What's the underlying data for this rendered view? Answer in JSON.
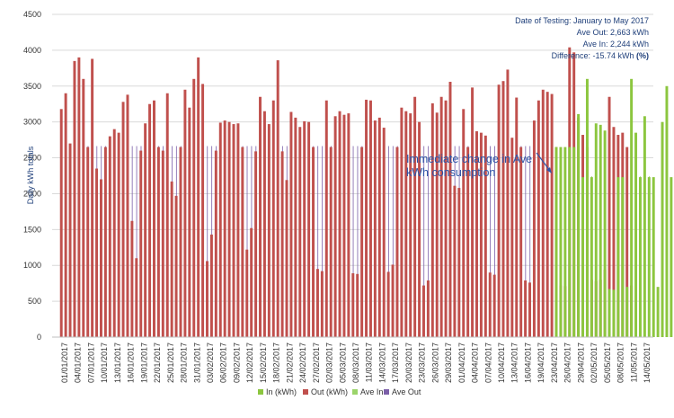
{
  "chart_data": {
    "type": "bar",
    "xlabel": "",
    "ylabel": "Daily kWh totals",
    "ylim": [
      0,
      4500
    ],
    "yticks": [
      0,
      500,
      1000,
      1500,
      2000,
      2500,
      3000,
      3500,
      4000,
      4500
    ],
    "grid": "horizontal",
    "legend_position": "bottom",
    "colors": {
      "in": "#8cc63f",
      "out": "#c0504d",
      "ave_in": "#9bd46a",
      "ave_out": "#7b5fa8",
      "grid": "#d9d9d9",
      "annotation": "#2e55a8",
      "info": "#1f3f7a"
    },
    "x_tick_labels": [
      "01/01/2017",
      "04/01/2017",
      "07/01/2017",
      "10/01/2017",
      "13/01/2017",
      "16/01/2017",
      "19/01/2017",
      "22/01/2017",
      "25/01/2017",
      "28/01/2017",
      "31/01/2017",
      "03/02/2017",
      "06/02/2017",
      "09/02/2017",
      "12/02/2017",
      "15/02/2017",
      "18/02/2017",
      "21/02/2017",
      "24/02/2017",
      "27/02/2017",
      "02/03/2017",
      "05/03/2017",
      "08/03/2017",
      "11/03/2017",
      "14/03/2017",
      "17/03/2017",
      "20/03/2017",
      "23/03/2017",
      "26/03/2017",
      "29/03/2017",
      "01/04/2017",
      "04/04/2017",
      "07/04/2017",
      "10/04/2017",
      "13/04/2017",
      "16/04/2017",
      "19/04/2017",
      "23/04/2017",
      "26/04/2017",
      "29/04/2017",
      "02/05/2017",
      "05/05/2017",
      "08/05/2017",
      "11/05/2017",
      "14/05/2017"
    ],
    "series": [
      {
        "name": "Out (kWh)",
        "start_day": 0,
        "values": [
          3180,
          3400,
          2700,
          3850,
          3900,
          3600,
          2650,
          3880,
          2350,
          2200,
          2650,
          2800,
          2900,
          2850,
          3280,
          3380,
          1620,
          1100,
          2600,
          2980,
          3250,
          3300,
          2650,
          2600,
          3400,
          2170,
          1970,
          2650,
          3450,
          3200,
          3600,
          3900,
          3530,
          1060,
          1430,
          2600,
          2990,
          3020,
          3000,
          2970,
          2980,
          2650,
          1220,
          1520,
          2590,
          3350,
          3150,
          2970,
          3300,
          3860,
          2590,
          2190,
          3140,
          3060,
          2930,
          3010,
          3000,
          2650,
          950,
          920,
          3300,
          2650,
          3080,
          3150,
          3100,
          3120,
          890,
          880,
          2650,
          3310,
          3300,
          3020,
          3060,
          2920,
          910,
          1010,
          2650,
          3200,
          3150,
          3120,
          3350,
          3000,
          720,
          790,
          3260,
          3130,
          3350,
          3300,
          3560,
          2110,
          2080,
          3180,
          2650,
          3480,
          2870,
          2850,
          2810,
          900,
          870,
          3520,
          3570,
          3730,
          2780,
          3340,
          2650,
          790,
          760,
          3020,
          3300,
          3450,
          3420,
          3390,
          2650,
          720,
          710,
          4040,
          3970,
          3060,
          2820,
          2650,
          800,
          780,
          800,
          940,
          3350,
          2930,
          2820,
          2850,
          2650,
          720
        ]
      },
      {
        "name": "In (kWh)",
        "start_day": 112,
        "values": [
          2650,
          2650,
          2650,
          2650,
          2650,
          3110,
          2230,
          3600,
          2230,
          2980,
          2960,
          2880,
          670,
          660,
          2230,
          2230,
          700,
          3600,
          2850,
          2230,
          3080,
          2230,
          2230,
          700,
          3000,
          3500,
          2230,
          3300,
          2230,
          3000,
          2900,
          2230,
          650,
          2230,
          650
        ]
      },
      {
        "name": "Ave Out",
        "start_day": 0,
        "end_day": 111,
        "value": 2663
      },
      {
        "name": "Ave In",
        "start_day": 112,
        "end_day": 133,
        "value": 2244
      }
    ],
    "info_box": {
      "line1": "Date of Testing: January to May 2017",
      "line2": "Ave Out:  2,663 kWh",
      "line3": "Ave In:  2,244 kWh",
      "line4_prefix": "Difference:  -15.74 kWh ",
      "line4_unit": "(%)"
    },
    "annotation": {
      "line1": "Immediate change in Ave",
      "line2": "kWh consumption"
    },
    "legend": {
      "in": "In (kWh)",
      "out": "Out (kWh)",
      "ave_in": "Ave In",
      "ave_out": "Ave Out"
    }
  }
}
